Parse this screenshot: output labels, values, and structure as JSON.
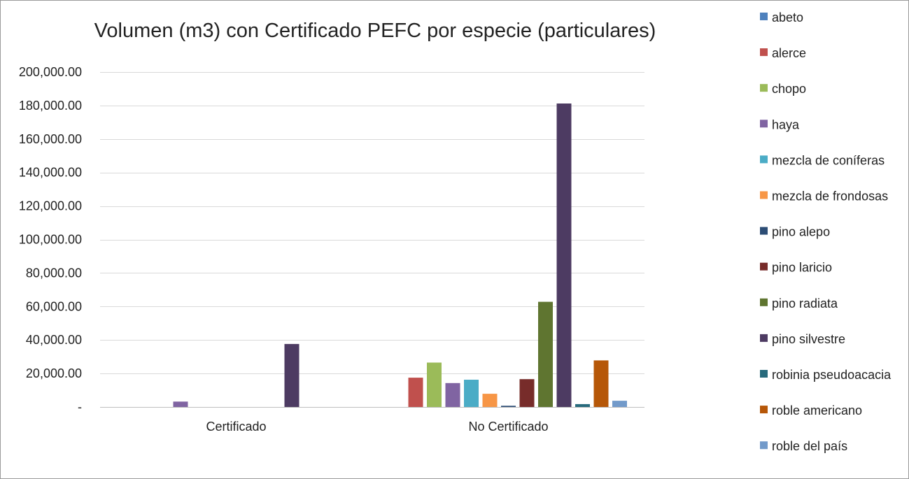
{
  "chart_data": {
    "type": "bar",
    "title": "Volumen (m3) con Certificado PEFC por especie (particulares)",
    "xlabel": "",
    "ylabel": "",
    "categories": [
      "Certificado",
      "No Certificado"
    ],
    "ylim": [
      0,
      200000
    ],
    "yticks": [
      0,
      20000,
      40000,
      60000,
      80000,
      100000,
      120000,
      140000,
      160000,
      180000,
      200000
    ],
    "ytick_labels": [
      "-",
      "20,000.00",
      "40,000.00",
      "60,000.00",
      "80,000.00",
      "100,000.00",
      "120,000.00",
      "140,000.00",
      "160,000.00",
      "180,000.00",
      "200,000.00"
    ],
    "grid": true,
    "legend_position": "right",
    "series": [
      {
        "name": "abeto",
        "color": "#4F81BD",
        "values": [
          0,
          0
        ]
      },
      {
        "name": "alerce",
        "color": "#C0504D",
        "values": [
          0,
          17500
        ]
      },
      {
        "name": "chopo",
        "color": "#9BBB59",
        "values": [
          0,
          26500
        ]
      },
      {
        "name": "haya",
        "color": "#8064A2",
        "values": [
          3200,
          14300
        ]
      },
      {
        "name": "mezcla de coníferas",
        "color": "#4BACC6",
        "values": [
          0,
          16300
        ]
      },
      {
        "name": "mezcla de frondosas",
        "color": "#F79646",
        "values": [
          0,
          7900
        ]
      },
      {
        "name": "pino alepo",
        "color": "#2C4D75",
        "values": [
          0,
          700
        ]
      },
      {
        "name": "pino laricio",
        "color": "#772C2A",
        "values": [
          0,
          16600
        ]
      },
      {
        "name": "pino radiata",
        "color": "#5F7530",
        "values": [
          0,
          62800
        ]
      },
      {
        "name": "pino silvestre",
        "color": "#4D3B62",
        "values": [
          37600,
          181200
        ]
      },
      {
        "name": "robinia pseudoacacia",
        "color": "#276A7C",
        "values": [
          0,
          1700
        ]
      },
      {
        "name": "roble americano",
        "color": "#B65708",
        "values": [
          0,
          27800
        ]
      },
      {
        "name": "roble del país",
        "color": "#729ACA",
        "values": [
          0,
          3700
        ]
      }
    ]
  }
}
